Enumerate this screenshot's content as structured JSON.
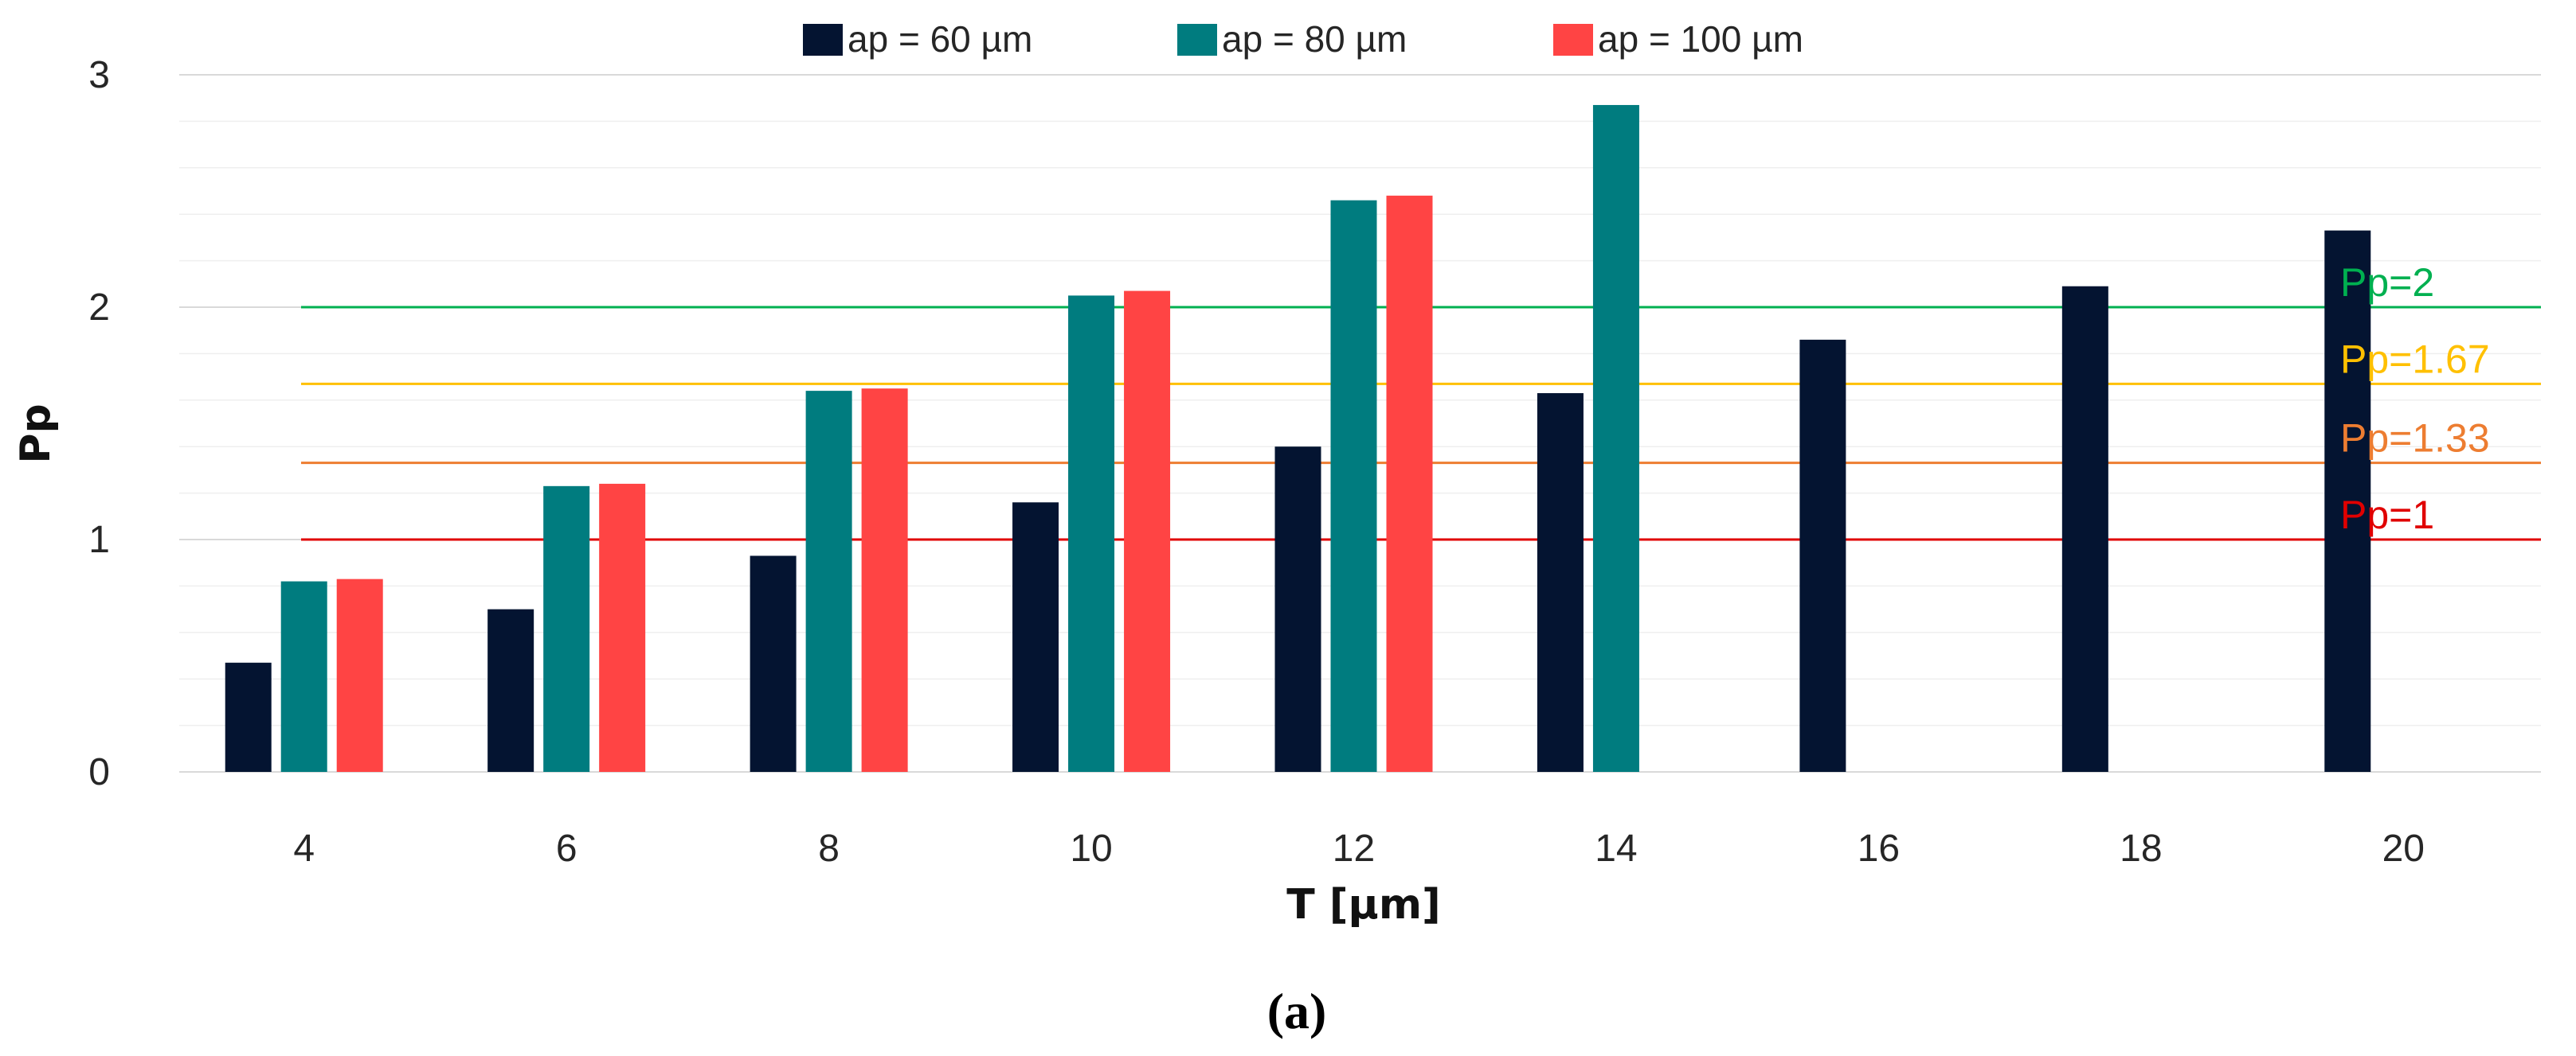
{
  "chart_data": {
    "type": "bar",
    "title": "",
    "caption": "(a)",
    "xlabel": "T [µm]",
    "ylabel": "Pp",
    "ylim": [
      0,
      3
    ],
    "yticks": [
      0,
      1,
      2,
      3
    ],
    "ytick_labels": [
      "0",
      "1",
      "2",
      "3"
    ],
    "minor_grid_step": 0.2,
    "grid": true,
    "legend_position": "top-center",
    "categories": [
      "4",
      "6",
      "8",
      "10",
      "12",
      "14",
      "16",
      "18",
      "20"
    ],
    "series": [
      {
        "name": "ap = 60 µm",
        "color": "#041431",
        "values": [
          0.47,
          0.7,
          0.93,
          1.16,
          1.4,
          1.63,
          1.86,
          2.09,
          2.33
        ]
      },
      {
        "name": "ap = 80 µm",
        "color": "#007C7F",
        "values": [
          0.82,
          1.23,
          1.64,
          2.05,
          2.46,
          2.87,
          null,
          null,
          null
        ]
      },
      {
        "name": "ap = 100 µm",
        "color": "#FF4444",
        "values": [
          0.83,
          1.24,
          1.65,
          2.07,
          2.48,
          null,
          null,
          null,
          null
        ]
      }
    ],
    "reference_lines": [
      {
        "label": "Pp=2",
        "value": 2,
        "color": "#00B050"
      },
      {
        "label": "Pp=1.67",
        "value": 1.67,
        "color": "#FFC000"
      },
      {
        "label": "Pp=1.33",
        "value": 1.33,
        "color": "#ED7D31"
      },
      {
        "label": "Pp=1",
        "value": 1,
        "color": "#E00000"
      }
    ]
  }
}
